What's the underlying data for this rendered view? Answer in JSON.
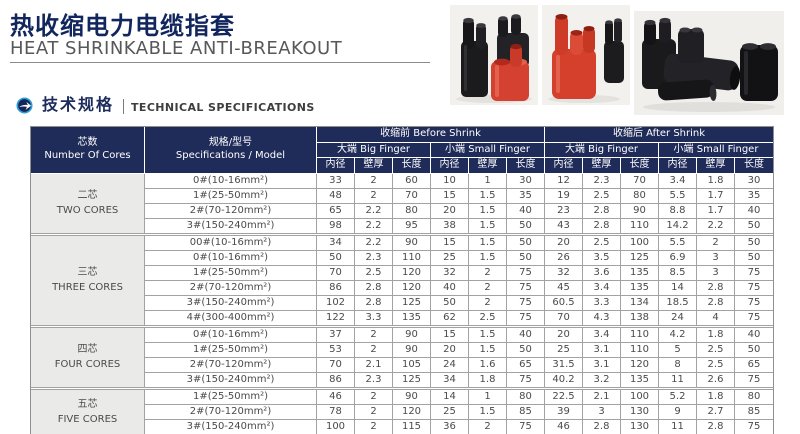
{
  "page": {
    "title_zh": "热收缩电力电缆指套",
    "title_en": "HEAT SHRINKABLE ANTI-BREAKOUT",
    "section": {
      "zh": "技术规格",
      "en": "TECHNICAL SPECIFICATIONS"
    }
  },
  "colors": {
    "header_navy": "#1F2B58",
    "title_navy": "#12265E",
    "product_red": "#D4402C",
    "product_black": "#1B1B1E",
    "icon_blue": "#2E9FD4",
    "border_gray": "#A2A2A2",
    "group_cell_bg": "#EAEAE8"
  },
  "photos": [
    {
      "name": "black-and-red-breakout-boots-photo"
    },
    {
      "name": "red-and-black-breakout-boots-photo"
    },
    {
      "name": "black-breakout-boots-group-photo"
    }
  ],
  "table": {
    "header": {
      "cores_zh": "芯数",
      "cores_en": "Number Of Cores",
      "spec_zh": "规格/型号",
      "spec_en": "Specifications / Model",
      "before_shrink": "收缩前 Before Shrink",
      "after_shrink": "收缩后 After Shrink",
      "big_finger": "大端 Big Finger",
      "small_finger": "小端 Small Finger",
      "sub_cols": [
        "内径",
        "壁厚",
        "长度"
      ]
    },
    "groups": [
      {
        "name_zh": "二芯",
        "name_en": "TWO CORES",
        "rows": [
          {
            "model": "0#(10-16mm²)",
            "values": [
              33,
              2,
              60,
              10,
              1,
              30,
              12,
              2.3,
              70,
              3.4,
              1.8,
              30
            ]
          },
          {
            "model": "1#(25-50mm²)",
            "values": [
              48,
              2,
              70,
              15,
              1.5,
              35,
              19,
              2.5,
              80,
              5.5,
              1.7,
              35
            ]
          },
          {
            "model": "2#(70-120mm²)",
            "values": [
              65,
              2.2,
              80,
              20,
              1.5,
              40,
              23,
              2.8,
              90,
              8.8,
              1.7,
              40
            ]
          },
          {
            "model": "3#(150-240mm²)",
            "values": [
              98,
              2.2,
              95,
              38,
              1.5,
              50,
              43,
              2.8,
              110,
              14.2,
              2.2,
              50
            ]
          }
        ]
      },
      {
        "name_zh": "三芯",
        "name_en": "THREE CORES",
        "rows": [
          {
            "model": "00#(10-16mm²)",
            "values": [
              34,
              2.2,
              90,
              15,
              1.5,
              50,
              20,
              2.5,
              100,
              5.5,
              2,
              50
            ]
          },
          {
            "model": "0#(10-16mm²)",
            "values": [
              50,
              2.3,
              110,
              25,
              1.5,
              50,
              26,
              3.5,
              125,
              6.9,
              3,
              50
            ]
          },
          {
            "model": "1#(25-50mm²)",
            "values": [
              70,
              2.5,
              120,
              32,
              2,
              75,
              32,
              3.6,
              135,
              8.5,
              3,
              75
            ]
          },
          {
            "model": "2#(70-120mm²)",
            "values": [
              86,
              2.8,
              120,
              40,
              2,
              75,
              45,
              3.4,
              135,
              14,
              2.8,
              75
            ]
          },
          {
            "model": "3#(150-240mm²)",
            "values": [
              102,
              2.8,
              125,
              50,
              2,
              75,
              60.5,
              3.3,
              134,
              18.5,
              2.8,
              75
            ]
          },
          {
            "model": "4#(300-400mm²)",
            "values": [
              122,
              3.3,
              135,
              62,
              2.5,
              75,
              70,
              4.3,
              138,
              24,
              4,
              75
            ]
          }
        ]
      },
      {
        "name_zh": "四芯",
        "name_en": "FOUR CORES",
        "rows": [
          {
            "model": "0#(10-16mm²)",
            "values": [
              37,
              2,
              90,
              15,
              1.5,
              40,
              20,
              3.4,
              110,
              4.2,
              1.8,
              40
            ]
          },
          {
            "model": "1#(25-50mm²)",
            "values": [
              53,
              2,
              90,
              20,
              1.5,
              50,
              25,
              3.1,
              110,
              5,
              2.5,
              50
            ]
          },
          {
            "model": "2#(70-120mm²)",
            "values": [
              70,
              2.1,
              105,
              24,
              1.6,
              65,
              31.5,
              3.1,
              120,
              8,
              2.5,
              65
            ]
          },
          {
            "model": "3#(150-240mm²)",
            "values": [
              86,
              2.3,
              125,
              34,
              1.8,
              75,
              40.2,
              3.2,
              135,
              11,
              2.6,
              75
            ]
          }
        ]
      },
      {
        "name_zh": "五芯",
        "name_en": "FIVE CORES",
        "rows": [
          {
            "model": "1#(25-50mm²)",
            "values": [
              46,
              2,
              90,
              14,
              1,
              80,
              22.5,
              2.1,
              100,
              5.2,
              1.8,
              80
            ]
          },
          {
            "model": "2#(70-120mm²)",
            "values": [
              78,
              2,
              120,
              25,
              1.5,
              85,
              39,
              3,
              130,
              9,
              2.7,
              85
            ]
          },
          {
            "model": "3#(150-240mm²)",
            "values": [
              100,
              2,
              115,
              36,
              2,
              75,
              46,
              2.8,
              130,
              11,
              2.8,
              75
            ]
          }
        ]
      }
    ]
  }
}
